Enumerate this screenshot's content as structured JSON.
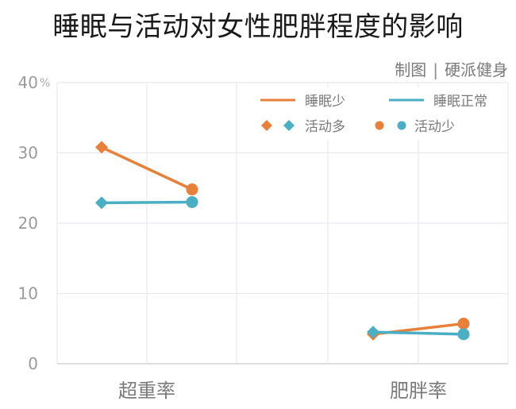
{
  "title": "睡眠与活动对女性肥胖程度的影响",
  "credit": {
    "label": "制图",
    "separator": "|",
    "source": "硬派健身"
  },
  "colors": {
    "orange": "#e8803a",
    "blue": "#4aaec5",
    "grid": "#e6e6ec",
    "axis": "#bbbbc4"
  },
  "chart_data": {
    "type": "line",
    "title": "睡眠与活动对女性肥胖程度的影响",
    "categories": [
      "超重率",
      "肥胖率"
    ],
    "ylim": [
      0,
      40
    ],
    "yticks": [
      0,
      10,
      20,
      30,
      40
    ],
    "ytick_labels": [
      "0",
      "10",
      "20",
      "30",
      "40"
    ],
    "yunit": "%",
    "grid": true,
    "legend_position": "top-right",
    "legend": {
      "lines": [
        {
          "name": "睡眠少",
          "color": "#e8803a"
        },
        {
          "name": "睡眠正常",
          "color": "#4aaec5"
        }
      ],
      "markers": [
        {
          "name": "活动多",
          "shape": "diamond"
        },
        {
          "name": "活动少",
          "shape": "circle"
        }
      ]
    },
    "x_levels": [
      "活动多",
      "活动少"
    ],
    "series": [
      {
        "name": "睡眠少",
        "color": "#e8803a",
        "category": "超重率",
        "values": [
          30.8,
          24.8
        ]
      },
      {
        "name": "睡眠正常",
        "color": "#4aaec5",
        "category": "超重率",
        "values": [
          22.9,
          23.0
        ]
      },
      {
        "name": "睡眠少",
        "color": "#e8803a",
        "category": "肥胖率",
        "values": [
          4.2,
          5.7
        ]
      },
      {
        "name": "睡眠正常",
        "color": "#4aaec5",
        "category": "肥胖率",
        "values": [
          4.5,
          4.2
        ]
      }
    ]
  }
}
